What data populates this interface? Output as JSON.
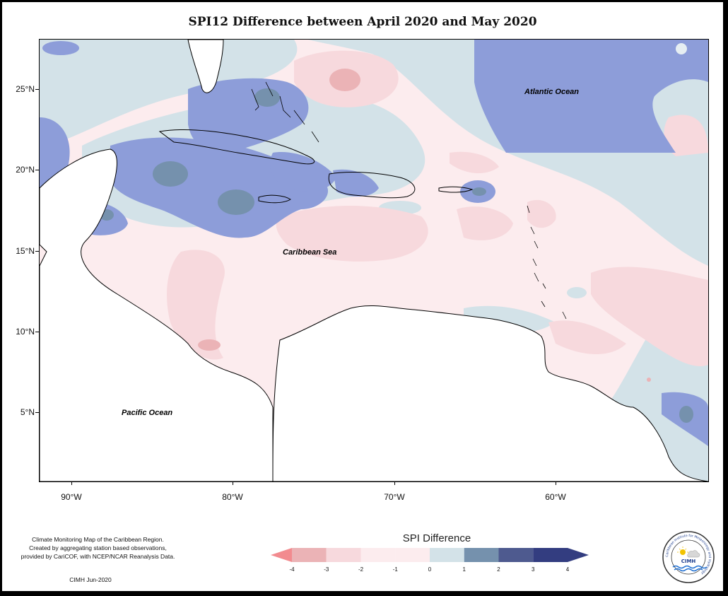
{
  "title": "SPI12 Difference between April 2020 and May 2020",
  "map": {
    "lat_labels": [
      "25°N",
      "20°N",
      "15°N",
      "10°N",
      "5°N"
    ],
    "lon_labels": [
      "90°W",
      "80°W",
      "70°W",
      "60°W"
    ],
    "place_labels": {
      "atlantic": "Atlantic Ocean",
      "caribbean": "Caribbean Sea",
      "pacific": "Pacific Ocean"
    }
  },
  "legend": {
    "title": "SPI Difference",
    "labels": [
      "-4",
      "-3",
      "-2",
      "-1",
      "0",
      "1",
      "2",
      "3",
      "4"
    ],
    "colors": [
      "#f28b8f",
      "#ebb3b6",
      "#f7d9dd",
      "#fcecee",
      "#d3e2e8",
      "#8d9dd9",
      "#7591ad",
      "#4e5a8f",
      "#333d80"
    ]
  },
  "credits": {
    "line1": "Climate Monitoring Map of the Caribbean Region.",
    "line2": "Created by aggregating station based observations,",
    "line3": "provided by CariCOF, with NCEP/NCAR Reanalysis Data."
  },
  "footer": "CIMH Jun-2020",
  "logo": {
    "acronym": "CIMH",
    "ring_text": "Caribbean Institute for Meteorology and Hydrology"
  }
}
